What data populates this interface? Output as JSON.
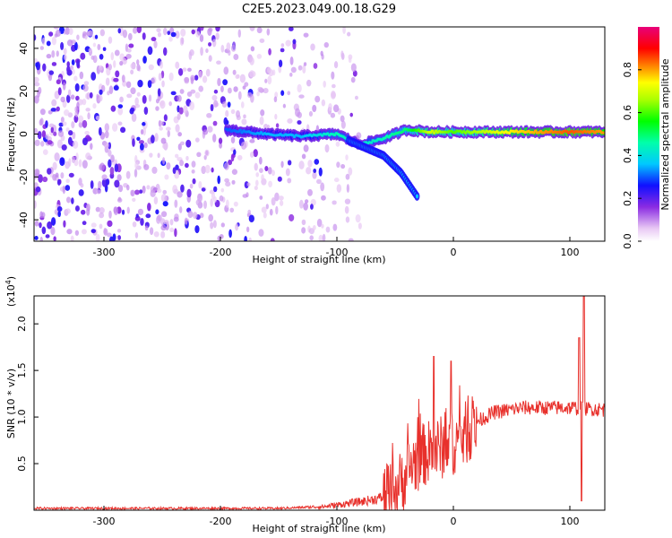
{
  "title": "C2E5.2023.049.00.18.G29",
  "colors": {
    "snr_line": "#e8312c",
    "background": "#ffffff",
    "frame": "#000000"
  },
  "chart_data": [
    {
      "type": "heatmap",
      "name": "spectrogram",
      "xlabel": "Height of straight line (km)",
      "ylabel": "Frequency (Hz)",
      "xlim": [
        -360,
        130
      ],
      "ylim": [
        -50,
        50
      ],
      "xticks": [
        -300,
        -200,
        -100,
        0,
        100
      ],
      "yticks": [
        -40,
        -20,
        0,
        20,
        40
      ],
      "colormap": "rainbow (white -> violet -> blue -> cyan -> green -> yellow -> red -> magenta)",
      "colorbar": {
        "label": "Normalized spectral amplitude",
        "range": [
          0,
          1
        ],
        "ticks": [
          "0.0",
          "0.2",
          "0.4",
          "0.6",
          "0.8"
        ]
      },
      "features": {
        "noise_region": [
          -360,
          -100
        ],
        "trace": [
          {
            "x": -195,
            "f": 2,
            "amp": 0.3
          },
          {
            "x": -160,
            "f": 0,
            "amp": 0.35
          },
          {
            "x": -130,
            "f": -1,
            "amp": 0.35
          },
          {
            "x": -100,
            "f": 0,
            "amp": 0.45
          },
          {
            "x": -80,
            "f": -5,
            "amp": 0.4
          },
          {
            "x": -60,
            "f": -2,
            "amp": 0.45
          },
          {
            "x": -40,
            "f": 2,
            "amp": 0.5
          },
          {
            "x": -20,
            "f": 1,
            "amp": 0.7
          },
          {
            "x": 0,
            "f": 1,
            "amp": 0.6
          },
          {
            "x": 50,
            "f": 1,
            "amp": 0.75
          },
          {
            "x": 100,
            "f": 1,
            "amp": 0.85
          },
          {
            "x": 130,
            "f": 1,
            "amp": 0.8
          }
        ],
        "branch": [
          {
            "x": -90,
            "f": -3
          },
          {
            "x": -60,
            "f": -10
          },
          {
            "x": -45,
            "f": -18
          },
          {
            "x": -30,
            "f": -30
          }
        ]
      }
    },
    {
      "type": "line",
      "name": "snr",
      "xlabel": "Height of straight line (km)",
      "ylabel": "SNR (10 * v/v)",
      "yscale_label": "(x10",
      "yscale_exp": "4",
      "yscale_close": ")",
      "xlim": [
        -360,
        130
      ],
      "ylim": [
        0,
        2.3
      ],
      "xticks": [
        -300,
        -200,
        -100,
        0,
        100
      ],
      "yticks": [
        "0.5",
        "1.0",
        "1.5",
        "2.0"
      ],
      "profile": [
        {
          "x": -360,
          "y": 0.02
        },
        {
          "x": -150,
          "y": 0.02
        },
        {
          "x": -110,
          "y": 0.04
        },
        {
          "x": -75,
          "y": 0.1
        },
        {
          "x": -55,
          "y": 0.15
        },
        {
          "x": -45,
          "y": 0.3
        },
        {
          "x": -35,
          "y": 0.5
        },
        {
          "x": -25,
          "y": 0.6
        },
        {
          "x": -15,
          "y": 0.65
        },
        {
          "x": -5,
          "y": 0.7
        },
        {
          "x": 5,
          "y": 0.75
        },
        {
          "x": 20,
          "y": 0.95
        },
        {
          "x": 35,
          "y": 1.05
        },
        {
          "x": 60,
          "y": 1.1
        },
        {
          "x": 100,
          "y": 1.1
        },
        {
          "x": 130,
          "y": 1.08
        }
      ],
      "spikes": [
        {
          "x": -17,
          "y": 1.65
        },
        {
          "x": -2,
          "y": 1.6
        },
        {
          "x": 108,
          "y": 1.85
        },
        {
          "x": 112,
          "y": 2.3
        },
        {
          "x": 110,
          "y": 0.1
        }
      ]
    }
  ]
}
